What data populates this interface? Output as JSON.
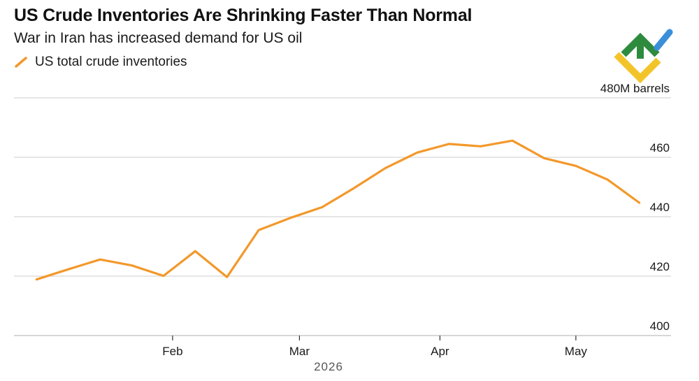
{
  "header": {
    "title": "US Crude Inventories Are Shrinking Faster Than Normal",
    "subtitle": "War in Iran has increased demand for US oil"
  },
  "logo_icon": "brand-logo",
  "colors": {
    "series": "#f3982a",
    "grid": "#d6d6d6",
    "logo_green": "#2e8b3e",
    "logo_yellow": "#f3c42a",
    "logo_blue": "#3b8fd9"
  },
  "chart_data": {
    "type": "line",
    "title": "US Crude Inventories Are Shrinking Faster Than Normal",
    "subtitle": "War in Iran has increased demand for US oil",
    "y_unit_label": "480M barrels",
    "xlabel": "2026",
    "ylim": [
      400,
      480
    ],
    "yticks": [
      400,
      420,
      440,
      460,
      480
    ],
    "ytick_labels": [
      "400",
      "420",
      "440",
      "460",
      "480M barrels"
    ],
    "xticks": [
      "2026-02-01",
      "2026-03-01",
      "2026-04-01",
      "2026-05-01"
    ],
    "xtick_labels": [
      "Feb",
      "Mar",
      "Apr",
      "May"
    ],
    "xlim": [
      "2025-12-28",
      "2026-05-22"
    ],
    "grid": true,
    "legend_position": "top-left",
    "series": [
      {
        "name": "US total crude inventories",
        "x": [
          "2026-01-02",
          "2026-01-09",
          "2026-01-16",
          "2026-01-23",
          "2026-01-30",
          "2026-02-06",
          "2026-02-13",
          "2026-02-20",
          "2026-02-27",
          "2026-03-06",
          "2026-03-13",
          "2026-03-20",
          "2026-03-27",
          "2026-04-03",
          "2026-04-10",
          "2026-04-17",
          "2026-04-24",
          "2026-05-01",
          "2026-05-08",
          "2026-05-15"
        ],
        "values": [
          418.9,
          422.3,
          425.6,
          423.6,
          420.1,
          428.4,
          419.7,
          435.5,
          439.6,
          443.2,
          449.6,
          456.4,
          461.6,
          464.5,
          463.7,
          465.6,
          459.7,
          457.1,
          452.5,
          444.7
        ]
      }
    ]
  }
}
